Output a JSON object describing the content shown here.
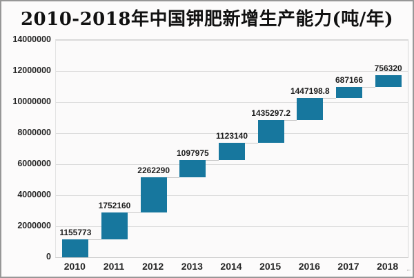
{
  "chart_data": {
    "type": "bar",
    "subtype": "waterfall",
    "title": "2010-2018年中国钾肥新增生产能力(吨/年)",
    "categories": [
      "2010",
      "2011",
      "2012",
      "2013",
      "2014",
      "2015",
      "2016",
      "2017",
      "2018"
    ],
    "values": [
      1155773,
      1752160,
      2262290,
      1097975,
      1123140,
      1435297.2,
      1447198.8,
      687166,
      756320
    ],
    "value_labels": [
      "1155773",
      "1752160",
      "2262290",
      "1097975",
      "1123140",
      "1435297.2",
      "1447198.8",
      "687166",
      "756320"
    ],
    "xlabel": "",
    "ylabel": "",
    "ylim": [
      0,
      14000000
    ],
    "ytick_step": 2000000,
    "ytick_labels": [
      "0",
      "2000000",
      "4000000",
      "6000000",
      "8000000",
      "10000000",
      "12000000",
      "14000000"
    ],
    "grid": true,
    "legend": "none",
    "bar_color": "#17779e",
    "grid_color": "#dcdcdc",
    "connector_color": "#c6c6c6",
    "title_color": "#111111",
    "label_color": "#1d1d1d"
  },
  "decorations": {
    "corner_mark": "←"
  }
}
